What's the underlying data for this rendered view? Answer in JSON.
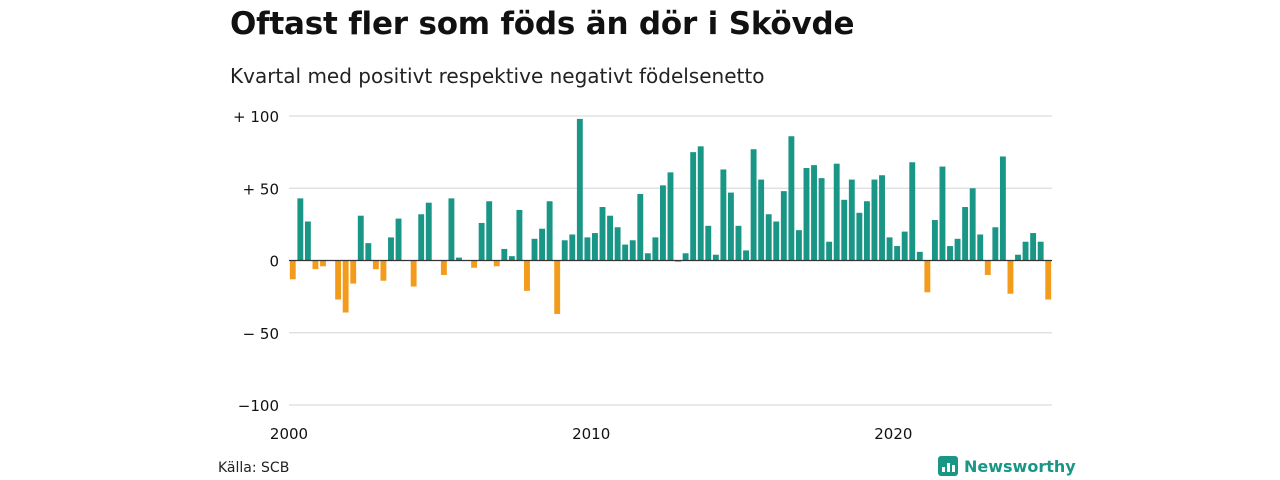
{
  "title": "Oftast fler som föds än dör i Skövde",
  "subtitle": "Kvartal med positivt respektive negativt födelsenetto",
  "source": "Källa: SCB",
  "brand": {
    "name": "Newsworthy",
    "icon": "newsworthy-logo-icon",
    "color": "#1a9687"
  },
  "colors": {
    "positive": "#1a9687",
    "negative": "#f39c1c",
    "grid": "#dcdcdc",
    "zero": "#333333"
  },
  "chart_data": {
    "type": "bar",
    "start_year": 2000,
    "periods_per_year": 4,
    "x_tick_labels": [
      "2000",
      "2010",
      "2020"
    ],
    "y_tick_labels": [
      "+ 100",
      "+  50",
      "0",
      "− 50",
      "−100"
    ],
    "y_ticks": [
      100,
      50,
      0,
      -50,
      -100
    ],
    "ylim": [
      -100,
      100
    ],
    "grid": true,
    "values": [
      -13,
      43,
      27,
      -6,
      -4,
      0,
      -27,
      -36,
      -16,
      31,
      12,
      -6,
      -14,
      16,
      29,
      0,
      -18,
      32,
      40,
      0,
      -10,
      43,
      2,
      0,
      -5,
      26,
      41,
      -4,
      8,
      3,
      35,
      -21,
      15,
      22,
      41,
      -37,
      14,
      18,
      98,
      16,
      19,
      37,
      31,
      23,
      11,
      14,
      46,
      5,
      16,
      52,
      61,
      -1,
      5,
      75,
      79,
      24,
      4,
      63,
      47,
      24,
      7,
      77,
      56,
      32,
      27,
      48,
      86,
      21,
      64,
      66,
      57,
      13,
      67,
      42,
      56,
      33,
      41,
      56,
      59,
      16,
      10,
      20,
      68,
      6,
      -22,
      28,
      65,
      10,
      15,
      37,
      50,
      18,
      -10,
      23,
      72,
      -23,
      4,
      13,
      19,
      13,
      -27
    ]
  }
}
